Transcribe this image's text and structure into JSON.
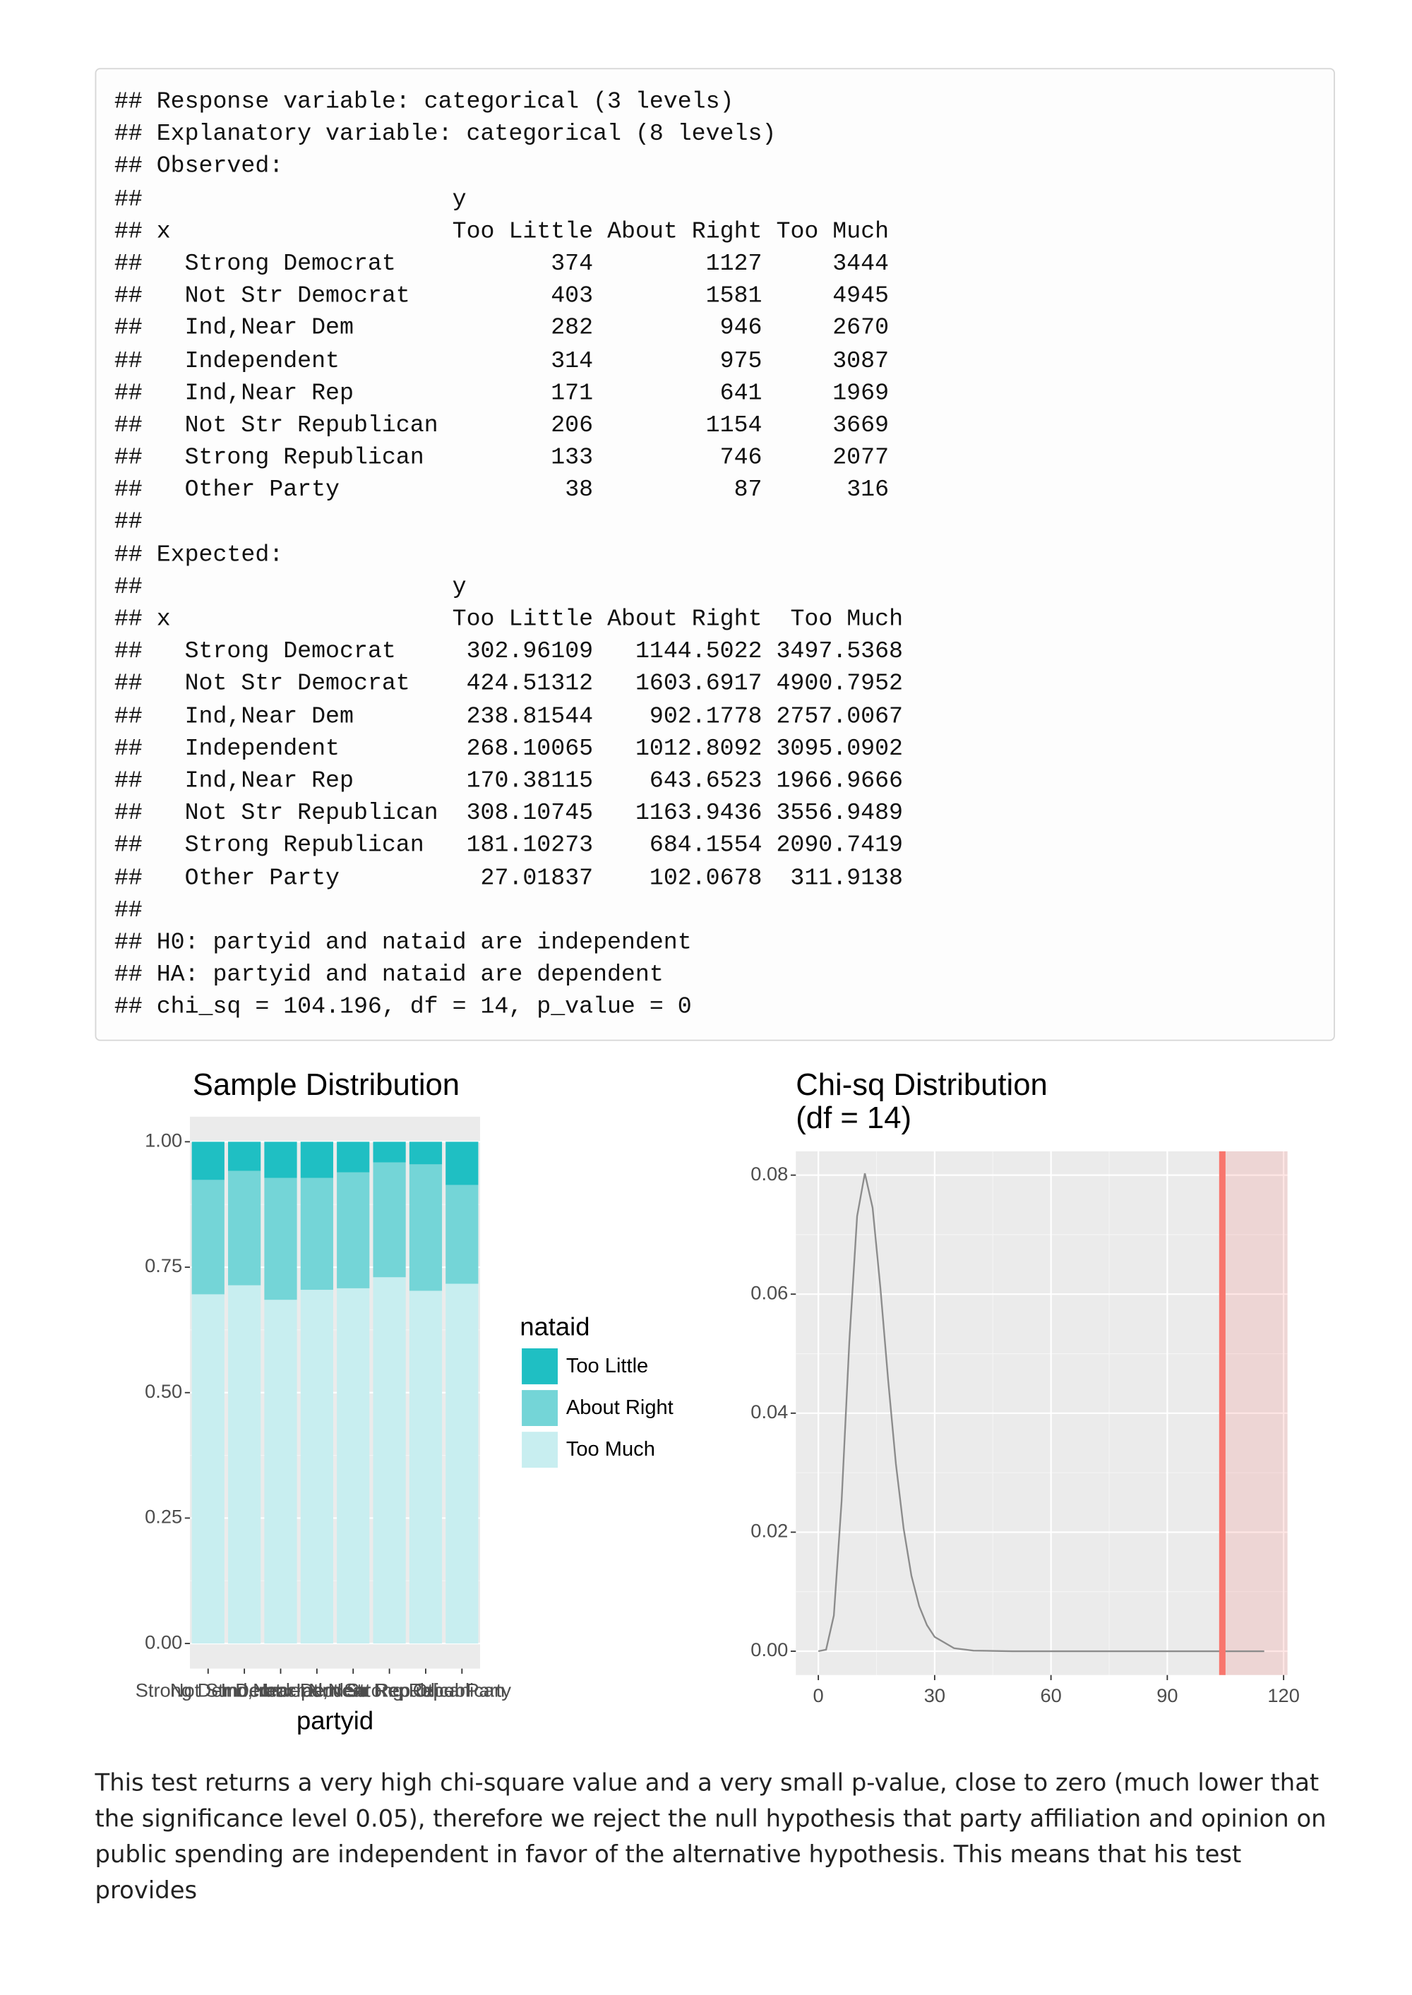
{
  "code_block": {
    "prefix": "##",
    "header_lines": [
      "Response variable: categorical (3 levels)",
      "Explanatory variable: categorical (8 levels)"
    ],
    "tables": [
      {
        "title": "Observed:",
        "col_var": "y",
        "row_var": "x",
        "columns": [
          "Too Little",
          "About Right",
          "Too Much"
        ],
        "rows": [
          {
            "label": "Strong Democrat",
            "cells": [
              374,
              1127,
              3444
            ]
          },
          {
            "label": "Not Str Democrat",
            "cells": [
              403,
              1581,
              4945
            ]
          },
          {
            "label": "Ind,Near Dem",
            "cells": [
              282,
              946,
              2670
            ]
          },
          {
            "label": "Independent",
            "cells": [
              314,
              975,
              3087
            ]
          },
          {
            "label": "Ind,Near Rep",
            "cells": [
              171,
              641,
              1969
            ]
          },
          {
            "label": "Not Str Republican",
            "cells": [
              206,
              1154,
              3669
            ]
          },
          {
            "label": "Strong Republican",
            "cells": [
              133,
              746,
              2077
            ]
          },
          {
            "label": "Other Party",
            "cells": [
              38,
              87,
              316
            ]
          }
        ]
      },
      {
        "title": "Expected:",
        "col_var": "y",
        "row_var": "x",
        "columns": [
          "Too Little",
          "About Right",
          "Too Much"
        ],
        "rows": [
          {
            "label": "Strong Democrat",
            "cells": [
              302.96109,
              1144.5022,
              3497.5368
            ]
          },
          {
            "label": "Not Str Democrat",
            "cells": [
              424.51312,
              1603.6917,
              4900.7952
            ]
          },
          {
            "label": "Ind,Near Dem",
            "cells": [
              238.81544,
              902.1778,
              2757.0067
            ]
          },
          {
            "label": "Independent",
            "cells": [
              268.10065,
              1012.8092,
              3095.0902
            ]
          },
          {
            "label": "Ind,Near Rep",
            "cells": [
              170.38115,
              643.6523,
              1966.9666
            ]
          },
          {
            "label": "Not Str Republican",
            "cells": [
              308.10745,
              1163.9436,
              3556.9489
            ]
          },
          {
            "label": "Strong Republican",
            "cells": [
              181.10273,
              684.1554,
              2090.7419
            ]
          },
          {
            "label": "Other Party",
            "cells": [
              27.01837,
              102.0678,
              311.9138
            ]
          }
        ]
      }
    ],
    "footer_lines": [
      "H0: partyid and nataid are independent",
      "HA: partyid and nataid are dependent",
      "chi_sq = 104.196, df = 14, p_value = 0"
    ]
  },
  "chart_data": [
    {
      "type": "bar",
      "stacked": true,
      "title": "Sample Distribution",
      "x_label": "partyid",
      "categories": [
        "Strong Democrat",
        "Not Str Democrat",
        "Ind,Near Dem",
        "Independent",
        "Ind,Near Rep",
        "Not Str Republican",
        "Strong Republican",
        "Other Party"
      ],
      "series": [
        {
          "name": "Too Little",
          "color": "#1fbfc3",
          "values": [
            0.076,
            0.058,
            0.072,
            0.072,
            0.061,
            0.041,
            0.045,
            0.086
          ]
        },
        {
          "name": "About Right",
          "color": "#74d5d7",
          "values": [
            0.228,
            0.228,
            0.243,
            0.223,
            0.231,
            0.229,
            0.252,
            0.197
          ]
        },
        {
          "name": "Too Much",
          "color": "#c8eef0",
          "values": [
            0.696,
            0.714,
            0.685,
            0.705,
            0.708,
            0.73,
            0.703,
            0.717
          ]
        }
      ],
      "legend_title": "nataid",
      "legend": "right",
      "ylim": [
        -0.05,
        1.05
      ],
      "yticks": [
        {
          "value": 0,
          "label": "0.00"
        },
        {
          "value": 0.25,
          "label": "0.25"
        },
        {
          "value": 0.5,
          "label": "0.50"
        },
        {
          "value": 0.75,
          "label": "0.75"
        },
        {
          "value": 1,
          "label": "1.00"
        }
      ],
      "grid": true
    },
    {
      "type": "line",
      "title": "Chi-sq Distribution\n(df = 14)",
      "color": "#8c8c8c",
      "x": [
        0,
        2,
        4,
        6,
        8,
        10,
        12,
        14,
        16,
        18,
        20,
        22,
        24,
        26,
        28,
        30,
        35,
        40,
        50,
        60,
        80,
        100,
        115
      ],
      "values": [
        0,
        0.00026,
        0.006,
        0.0252,
        0.0521,
        0.0731,
        0.0803,
        0.0745,
        0.0611,
        0.0456,
        0.0315,
        0.0206,
        0.0127,
        0.0076,
        0.0044,
        0.0024,
        0.0005,
        0.0001,
        0,
        0,
        0,
        0,
        0
      ],
      "vline": {
        "x": 104.196,
        "color": "#f8766d",
        "shade_color": "#f8766d"
      },
      "xlim": [
        -5.8,
        121
      ],
      "ylim": [
        -0.004,
        0.084
      ],
      "xticks": [
        0,
        30,
        60,
        90,
        120
      ],
      "yticks": [
        {
          "value": 0,
          "label": "0.00"
        },
        {
          "value": 0.02,
          "label": "0.02"
        },
        {
          "value": 0.04,
          "label": "0.04"
        },
        {
          "value": 0.06,
          "label": "0.06"
        },
        {
          "value": 0.08,
          "label": "0.08"
        }
      ],
      "grid": true
    }
  ],
  "paragraph": "This test returns a very high chi-square value and a very small p-value, close to zero (much lower that the significance level 0.05), therefore we reject the null hypothesis that party affiliation and opinion on public spending are independent in favor of the alternative hypothesis. This means that his test provides"
}
